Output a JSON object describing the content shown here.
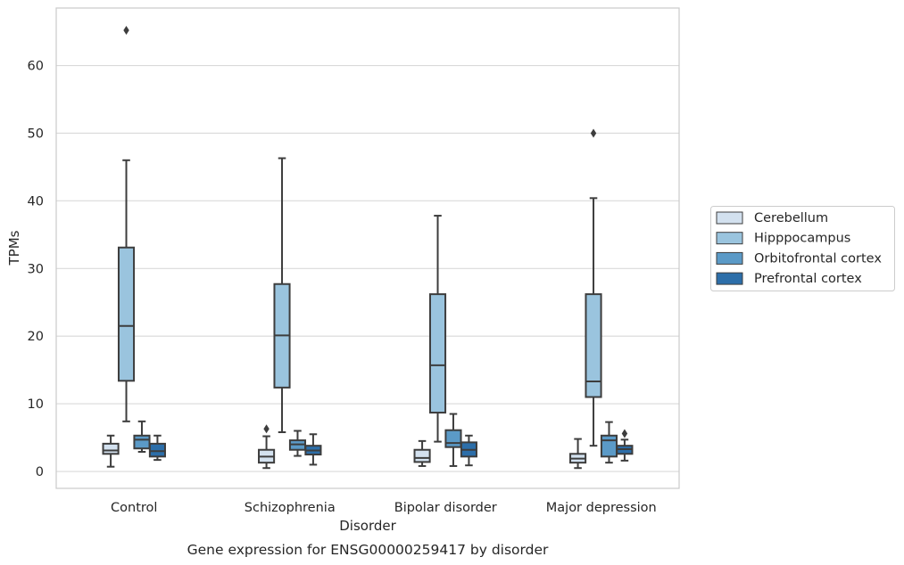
{
  "chart_data": {
    "type": "box",
    "xlabel": "Disorder",
    "ylabel": "TPMs",
    "caption": "Gene expression for ENSG00000259417 by disorder",
    "categories": [
      "Control",
      "Schizophrenia",
      "Bipolar disorder",
      "Major depression"
    ],
    "ylim": [
      -2.5,
      68.5
    ],
    "yticks": [
      0,
      10,
      20,
      30,
      40,
      50,
      60
    ],
    "grid": true,
    "legend_position": "right",
    "series": [
      {
        "name": "Cerebellum",
        "color": "#d3e1ef",
        "boxes": [
          {
            "whisker_low": 0.7,
            "q1": 2.6,
            "median": 3.1,
            "q3": 4.1,
            "whisker_high": 5.3,
            "outliers": []
          },
          {
            "whisker_low": 0.5,
            "q1": 1.3,
            "median": 2.2,
            "q3": 3.2,
            "whisker_high": 5.2,
            "outliers": [
              6.3
            ]
          },
          {
            "whisker_low": 0.8,
            "q1": 1.4,
            "median": 2.0,
            "q3": 3.2,
            "whisker_high": 4.5,
            "outliers": []
          },
          {
            "whisker_low": 0.5,
            "q1": 1.3,
            "median": 1.9,
            "q3": 2.6,
            "whisker_high": 4.8,
            "outliers": []
          }
        ]
      },
      {
        "name": "Hipppocampus",
        "color": "#9ac4de",
        "boxes": [
          {
            "whisker_low": 7.4,
            "q1": 13.4,
            "median": 21.5,
            "q3": 33.1,
            "whisker_high": 46.0,
            "outliers": [
              65.2
            ]
          },
          {
            "whisker_low": 5.8,
            "q1": 12.4,
            "median": 20.1,
            "q3": 27.7,
            "whisker_high": 46.3,
            "outliers": []
          },
          {
            "whisker_low": 4.4,
            "q1": 8.7,
            "median": 15.7,
            "q3": 26.2,
            "whisker_high": 37.8,
            "outliers": []
          },
          {
            "whisker_low": 3.8,
            "q1": 11.0,
            "median": 13.3,
            "q3": 26.2,
            "whisker_high": 40.4,
            "outliers": [
              50.0
            ]
          }
        ]
      },
      {
        "name": "Orbitofrontal cortex",
        "color": "#5b9ac7",
        "boxes": [
          {
            "whisker_low": 2.9,
            "q1": 3.4,
            "median": 4.7,
            "q3": 5.3,
            "whisker_high": 7.4,
            "outliers": []
          },
          {
            "whisker_low": 2.3,
            "q1": 3.2,
            "median": 4.0,
            "q3": 4.6,
            "whisker_high": 6.0,
            "outliers": []
          },
          {
            "whisker_low": 0.8,
            "q1": 3.6,
            "median": 4.2,
            "q3": 6.1,
            "whisker_high": 8.5,
            "outliers": []
          },
          {
            "whisker_low": 1.3,
            "q1": 2.2,
            "median": 4.6,
            "q3": 5.3,
            "whisker_high": 7.3,
            "outliers": []
          }
        ]
      },
      {
        "name": "Prefrontal cortex",
        "color": "#2c6ea9",
        "boxes": [
          {
            "whisker_low": 1.7,
            "q1": 2.2,
            "median": 3.0,
            "q3": 4.1,
            "whisker_high": 5.3,
            "outliers": []
          },
          {
            "whisker_low": 1.0,
            "q1": 2.5,
            "median": 3.1,
            "q3": 3.8,
            "whisker_high": 5.5,
            "outliers": []
          },
          {
            "whisker_low": 0.9,
            "q1": 2.2,
            "median": 3.2,
            "q3": 4.3,
            "whisker_high": 5.3,
            "outliers": []
          },
          {
            "whisker_low": 1.6,
            "q1": 2.6,
            "median": 3.3,
            "q3": 3.8,
            "whisker_high": 4.7,
            "outliers": [
              5.6
            ]
          }
        ]
      }
    ]
  }
}
